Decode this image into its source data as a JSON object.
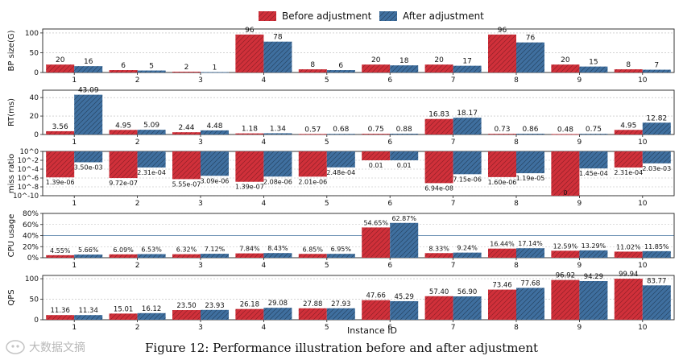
{
  "figure": {
    "caption": "Figure 12: Performance illustration before and after adjustment",
    "watermark": "大数据文摘",
    "xlabel": "Instance ID",
    "legend": {
      "before": "Before adjustment",
      "after": "After adjustment",
      "position": "top-center"
    },
    "colors": {
      "before": "#d0303a",
      "after": "#3f6f9f",
      "hatch": "#1d2b3a",
      "grid": "#b8b8b8",
      "refline": "#6f94b6"
    }
  },
  "chart_data": [
    {
      "type": "bar",
      "scale": "linear",
      "ylabel": "BP size(G)",
      "categories": [
        "1",
        "2",
        "3",
        "4",
        "5",
        "6",
        "7",
        "8",
        "9",
        "10"
      ],
      "ylim": [
        0,
        110
      ],
      "yticks": [
        0,
        50,
        100
      ],
      "ytick_labels": [
        "0",
        "50",
        "100"
      ],
      "series": [
        {
          "name": "Before adjustment",
          "values": [
            20,
            6,
            2,
            96,
            8,
            20,
            20,
            96,
            20,
            8
          ],
          "labels": [
            "20",
            "6",
            "2",
            "96",
            "8",
            "20",
            "20",
            "96",
            "20",
            "8"
          ]
        },
        {
          "name": "After adjustment",
          "values": [
            16,
            5,
            1,
            78,
            6,
            18,
            17,
            76,
            15,
            7
          ],
          "labels": [
            "16",
            "5",
            "1",
            "78",
            "6",
            "18",
            "17",
            "76",
            "15",
            "7"
          ]
        }
      ]
    },
    {
      "type": "bar",
      "scale": "linear",
      "ylabel": "RT(ms)",
      "categories": [
        "1",
        "2",
        "3",
        "4",
        "5",
        "6",
        "7",
        "8",
        "9",
        "10"
      ],
      "ylim": [
        0,
        48
      ],
      "yticks": [
        0,
        20,
        40
      ],
      "ytick_labels": [
        "0",
        "20",
        "40"
      ],
      "series": [
        {
          "name": "Before adjustment",
          "values": [
            3.56,
            4.95,
            2.44,
            1.18,
            0.57,
            0.75,
            16.83,
            0.73,
            0.48,
            4.95
          ],
          "labels": [
            "3.56",
            "4.95",
            "2.44",
            "1.18",
            "0.57",
            "0.75",
            "16.83",
            "0.73",
            "0.48",
            "4.95"
          ]
        },
        {
          "name": "After adjustment",
          "values": [
            43.09,
            5.09,
            4.48,
            1.34,
            0.68,
            0.88,
            18.17,
            0.86,
            0.75,
            12.82
          ],
          "labels": [
            "43.09",
            "5.09",
            "4.48",
            "1.34",
            "0.68",
            "0.88",
            "18.17",
            "0.86",
            "0.75",
            "12.82"
          ]
        }
      ]
    },
    {
      "type": "bar",
      "scale": "log10",
      "ylabel": "miss ratio",
      "categories": [
        "1",
        "2",
        "3",
        "4",
        "5",
        "6",
        "7",
        "8",
        "9",
        "10"
      ],
      "ylim_exp": [
        -10,
        0
      ],
      "yticks_exp": [
        0,
        -2,
        -4,
        -6,
        -8,
        -10
      ],
      "ytick_labels": [
        "10^0",
        "10^-2",
        "10^-4",
        "10^-6",
        "10^-8",
        "10^-10"
      ],
      "series": [
        {
          "name": "Before adjustment",
          "values": [
            1.39e-06,
            9.72e-07,
            5.55e-07,
            1.39e-07,
            2.01e-06,
            0.01,
            6.94e-08,
            1.6e-06,
            0,
            0.000231
          ],
          "labels": [
            "1.39e-06",
            "9.72e-07",
            "5.55e-07",
            "1.39e-07",
            "2.01e-06",
            "0.01",
            "6.94e-08",
            "1.60e-06",
            "0",
            "2.31e-04"
          ]
        },
        {
          "name": "After adjustment",
          "values": [
            0.0035,
            0.000231,
            3.09e-06,
            2.08e-06,
            0.000248,
            0.01,
            7.15e-06,
            1.19e-05,
            0.000145,
            0.00203
          ],
          "labels": [
            "3.50e-03",
            "2.31e-04",
            "3.09e-06",
            "2.08e-06",
            "2.48e-04",
            "0.01",
            "7.15e-06",
            "1.19e-05",
            "1.45e-04",
            "2.03e-03"
          ]
        }
      ]
    },
    {
      "type": "bar",
      "scale": "linear",
      "ylabel": "CPU usage",
      "categories": [
        "1",
        "2",
        "3",
        "4",
        "5",
        "6",
        "7",
        "8",
        "9",
        "10"
      ],
      "ylim": [
        0,
        80
      ],
      "yticks": [
        0,
        20,
        40,
        60,
        80
      ],
      "ytick_labels": [
        "0%",
        "20%",
        "40%",
        "60%",
        "80%"
      ],
      "reference_line": 40,
      "series": [
        {
          "name": "Before adjustment",
          "values": [
            4.55,
            6.09,
            6.32,
            7.84,
            6.85,
            54.65,
            8.33,
            16.44,
            12.59,
            11.02
          ],
          "labels": [
            "4.55%",
            "6.09%",
            "6.32%",
            "7.84%",
            "6.85%",
            "54.65%",
            "8.33%",
            "16.44%",
            "12.59%",
            "11.02%"
          ]
        },
        {
          "name": "After adjustment",
          "values": [
            5.66,
            6.53,
            7.12,
            8.43,
            6.95,
            62.87,
            9.24,
            17.14,
            13.29,
            11.85
          ],
          "labels": [
            "5.66%",
            "6.53%",
            "7.12%",
            "8.43%",
            "6.95%",
            "62.87%",
            "9.24%",
            "17.14%",
            "13.29%",
            "11.85%"
          ]
        }
      ]
    },
    {
      "type": "bar",
      "scale": "linear",
      "ylabel": "QPS",
      "categories": [
        "1",
        "2",
        "3",
        "4",
        "5",
        "6",
        "7",
        "8",
        "9",
        "10"
      ],
      "ylim": [
        0,
        108
      ],
      "yticks": [
        0,
        50,
        100
      ],
      "ytick_labels": [
        "0",
        "50",
        "100"
      ],
      "series": [
        {
          "name": "Before adjustment",
          "values": [
            11.36,
            15.01,
            23.5,
            26.18,
            27.88,
            47.66,
            57.4,
            73.46,
            96.92,
            99.94
          ],
          "labels": [
            "11.36",
            "15.01",
            "23.50",
            "26.18",
            "27.88",
            "47.66",
            "57.40",
            "73.46",
            "96.92",
            "99.94"
          ]
        },
        {
          "name": "After adjustment",
          "values": [
            11.34,
            16.12,
            23.93,
            29.08,
            27.93,
            45.29,
            56.9,
            77.68,
            94.29,
            83.77
          ],
          "labels": [
            "11.34",
            "16.12",
            "23.93",
            "29.08",
            "27.93",
            "45.29",
            "56.90",
            "77.68",
            "94.29",
            "83.77"
          ]
        }
      ]
    }
  ]
}
